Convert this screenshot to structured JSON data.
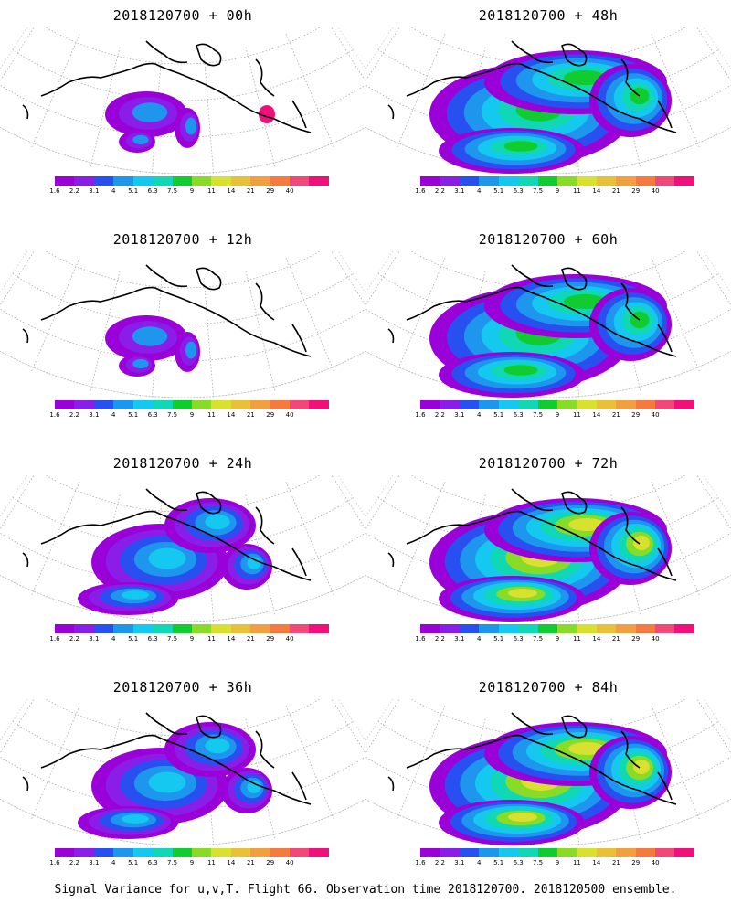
{
  "panels": [
    {
      "title": "2018120700 + 00h",
      "intensity": 0
    },
    {
      "title": "2018120700 + 48h",
      "intensity": 2
    },
    {
      "title": "2018120700 + 12h",
      "intensity": 0
    },
    {
      "title": "2018120700 + 60h",
      "intensity": 2
    },
    {
      "title": "2018120700 + 24h",
      "intensity": 1
    },
    {
      "title": "2018120700 + 72h",
      "intensity": 3
    },
    {
      "title": "2018120700 + 36h",
      "intensity": 1
    },
    {
      "title": "2018120700 + 84h",
      "intensity": 3
    }
  ],
  "colorbar": {
    "colors": [
      "#9a00d8",
      "#8a1ee8",
      "#2850f0",
      "#1e96ee",
      "#14c8f0",
      "#10d8b4",
      "#10cc30",
      "#88dc28",
      "#d8e030",
      "#e8c03a",
      "#f0a040",
      "#f47a40",
      "#f04878",
      "#f0107c"
    ],
    "labels": [
      "1.6",
      "2.2",
      "3.1",
      "4",
      "5.1",
      "6.3",
      "7.5",
      "9",
      "11",
      "14",
      "21",
      "29",
      "40"
    ]
  },
  "footer": "Signal Variance for u,v,T. Flight 66. Observation time 2018120700. 2018120500 ensemble."
}
